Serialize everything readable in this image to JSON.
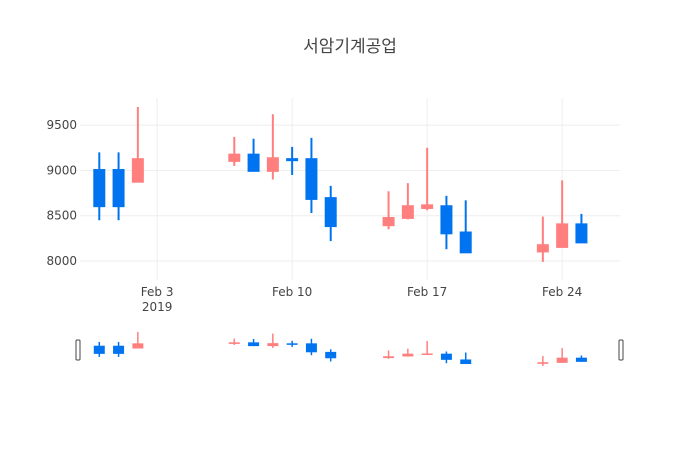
{
  "chart_data": {
    "type": "candlestick",
    "title": "서암기계공업",
    "xlabel": "",
    "ylabel": "",
    "ylim": [
      7790,
      9800
    ],
    "xlim": [
      "2019-01-30",
      "2019-02-27"
    ],
    "grid": true,
    "increasing_color": "#ff7f7f",
    "decreasing_color": "#0074f0",
    "y_ticks": [
      "8000",
      "8500",
      "9000",
      "9500"
    ],
    "x_ticks": [
      {
        "date": "2019-02-03",
        "label": "Feb 3",
        "sublabel": "2019"
      },
      {
        "date": "2019-02-10",
        "label": "Feb 10",
        "sublabel": ""
      },
      {
        "date": "2019-02-17",
        "label": "Feb 17",
        "sublabel": ""
      },
      {
        "date": "2019-02-24",
        "label": "Feb 24",
        "sublabel": ""
      }
    ],
    "candles": [
      {
        "date": "2019-01-31",
        "open": 9010,
        "high": 9200,
        "low": 8450,
        "close": 8600
      },
      {
        "date": "2019-02-01",
        "open": 9010,
        "high": 9200,
        "low": 8450,
        "close": 8600
      },
      {
        "date": "2019-02-02",
        "open": 8870,
        "high": 9700,
        "low": 8870,
        "close": 9130
      },
      {
        "date": "2019-02-07",
        "open": 9100,
        "high": 9370,
        "low": 9050,
        "close": 9180
      },
      {
        "date": "2019-02-08",
        "open": 9180,
        "high": 9350,
        "low": 8990,
        "close": 8990
      },
      {
        "date": "2019-02-09",
        "open": 8990,
        "high": 9620,
        "low": 8900,
        "close": 9140
      },
      {
        "date": "2019-02-10",
        "open": 9130,
        "high": 9260,
        "low": 8950,
        "close": 9120
      },
      {
        "date": "2019-02-11",
        "open": 9130,
        "high": 9360,
        "low": 8530,
        "close": 8680
      },
      {
        "date": "2019-02-12",
        "open": 8700,
        "high": 8830,
        "low": 8220,
        "close": 8380
      },
      {
        "date": "2019-02-15",
        "open": 8390,
        "high": 8770,
        "low": 8350,
        "close": 8480
      },
      {
        "date": "2019-02-16",
        "open": 8470,
        "high": 8860,
        "low": 8460,
        "close": 8610
      },
      {
        "date": "2019-02-17",
        "open": 8580,
        "high": 9250,
        "low": 8560,
        "close": 8620
      },
      {
        "date": "2019-02-18",
        "open": 8610,
        "high": 8720,
        "low": 8130,
        "close": 8300
      },
      {
        "date": "2019-02-19",
        "open": 8320,
        "high": 8670,
        "low": 8090,
        "close": 8090
      },
      {
        "date": "2019-02-23",
        "open": 8100,
        "high": 8490,
        "low": 7990,
        "close": 8180
      },
      {
        "date": "2019-02-24",
        "open": 8150,
        "high": 8890,
        "low": 8150,
        "close": 8410
      },
      {
        "date": "2019-02-25",
        "open": 8410,
        "high": 8520,
        "low": 8200,
        "close": 8200
      }
    ]
  }
}
